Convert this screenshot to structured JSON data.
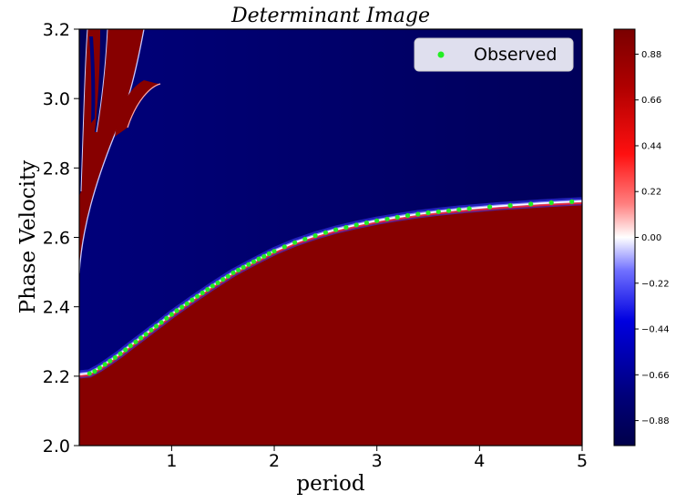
{
  "chart_data": {
    "type": "heatmap",
    "title": "Determinant Image",
    "xlabel": "period",
    "ylabel": "Phase Velocity",
    "xlim": [
      0.1,
      5.0
    ],
    "ylim": [
      2.0,
      3.2
    ],
    "x_ticks": [
      {
        "value": 1,
        "label": "1"
      },
      {
        "value": 2,
        "label": "2"
      },
      {
        "value": 3,
        "label": "3"
      },
      {
        "value": 4,
        "label": "4"
      },
      {
        "value": 5,
        "label": "5"
      }
    ],
    "y_ticks": [
      {
        "value": 2.0,
        "label": "2.0"
      },
      {
        "value": 2.2,
        "label": "2.2"
      },
      {
        "value": 2.4,
        "label": "2.4"
      },
      {
        "value": 2.6,
        "label": "2.6"
      },
      {
        "value": 2.8,
        "label": "2.8"
      },
      {
        "value": 3.0,
        "label": "3.0"
      },
      {
        "value": 3.2,
        "label": "3.2"
      }
    ],
    "colormap": "seismic",
    "colorbar": {
      "range": [
        -1.0,
        1.0
      ],
      "ticks": [
        {
          "value": 0.88,
          "label": "0.88"
        },
        {
          "value": 0.66,
          "label": "0.66"
        },
        {
          "value": 0.44,
          "label": "0.44"
        },
        {
          "value": 0.22,
          "label": "0.22"
        },
        {
          "value": 0.0,
          "label": "0.00"
        },
        {
          "value": -0.22,
          "label": "−0.22"
        },
        {
          "value": -0.44,
          "label": "−0.44"
        },
        {
          "value": -0.66,
          "label": "−0.66"
        },
        {
          "value": -0.88,
          "label": "−0.88"
        }
      ]
    },
    "colors": {
      "positive": "#870000",
      "negative": "#00004a",
      "zero": "#ffffff",
      "observed": "#22ee22"
    },
    "dispersion_curve": {
      "x": [
        0.12,
        0.2,
        0.3,
        0.4,
        0.5,
        0.6,
        0.7,
        0.8,
        0.9,
        1.0,
        1.2,
        1.4,
        1.6,
        1.8,
        2.0,
        2.2,
        2.4,
        2.6,
        2.8,
        3.0,
        3.2,
        3.4,
        3.6,
        3.8,
        4.0,
        4.2,
        4.4,
        4.6,
        4.8,
        5.0
      ],
      "y": [
        2.205,
        2.208,
        2.224,
        2.244,
        2.265,
        2.288,
        2.31,
        2.333,
        2.355,
        2.378,
        2.42,
        2.46,
        2.498,
        2.53,
        2.56,
        2.585,
        2.605,
        2.622,
        2.636,
        2.648,
        2.658,
        2.667,
        2.674,
        2.68,
        2.685,
        2.69,
        2.694,
        2.698,
        2.701,
        2.704
      ]
    },
    "legend": {
      "position": "top-right",
      "entries": [
        {
          "name": "Observed",
          "color": "#22ee22",
          "marker": "dot"
        }
      ]
    },
    "series": [
      {
        "name": "Observed",
        "x": [
          0.2,
          0.25,
          0.3,
          0.35,
          0.4,
          0.45,
          0.5,
          0.55,
          0.6,
          0.65,
          0.7,
          0.75,
          0.8,
          0.85,
          0.9,
          0.95,
          1.0,
          1.05,
          1.1,
          1.15,
          1.2,
          1.25,
          1.3,
          1.35,
          1.4,
          1.45,
          1.5,
          1.55,
          1.6,
          1.65,
          1.7,
          1.75,
          1.8,
          1.85,
          1.9,
          1.95,
          2.0,
          2.1,
          2.2,
          2.3,
          2.4,
          2.5,
          2.6,
          2.7,
          2.8,
          2.9,
          3.0,
          3.1,
          3.2,
          3.3,
          3.4,
          3.5,
          3.6,
          3.7,
          3.8,
          3.9,
          4.1,
          4.3,
          4.5,
          4.7,
          4.9
        ],
        "y": [
          2.208,
          2.214,
          2.224,
          2.234,
          2.244,
          2.254,
          2.265,
          2.276,
          2.288,
          2.299,
          2.31,
          2.321,
          2.333,
          2.344,
          2.355,
          2.367,
          2.378,
          2.389,
          2.399,
          2.409,
          2.42,
          2.43,
          2.44,
          2.45,
          2.46,
          2.469,
          2.479,
          2.488,
          2.498,
          2.506,
          2.514,
          2.522,
          2.53,
          2.538,
          2.545,
          2.553,
          2.56,
          2.573,
          2.585,
          2.595,
          2.605,
          2.614,
          2.622,
          2.629,
          2.636,
          2.642,
          2.648,
          2.653,
          2.658,
          2.663,
          2.667,
          2.671,
          2.674,
          2.677,
          2.68,
          2.683,
          2.688,
          2.692,
          2.696,
          2.7,
          2.703
        ]
      }
    ]
  }
}
